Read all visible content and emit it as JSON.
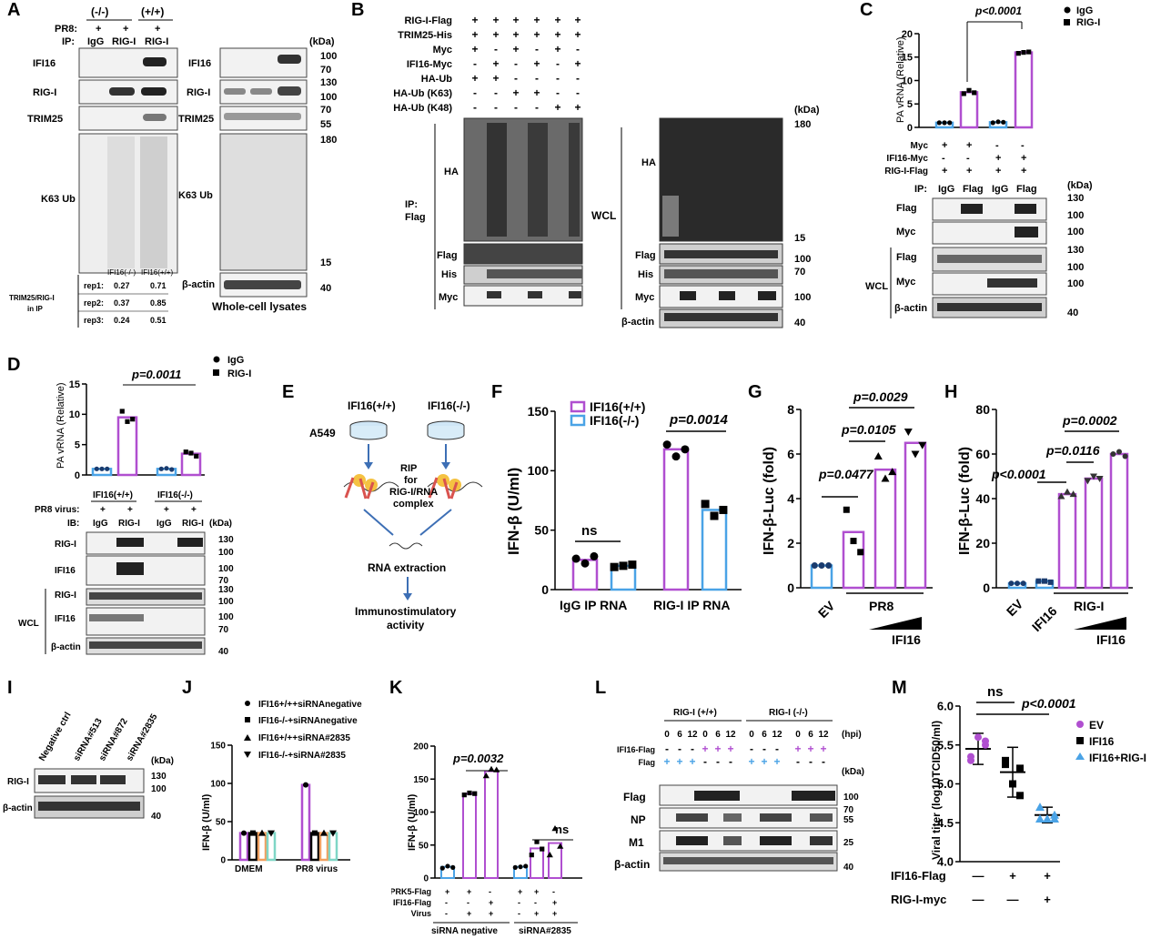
{
  "panels": {
    "A": {
      "letter": "A",
      "genotypes": [
        "(-/-)",
        "(+/+)"
      ],
      "row_pr8": "PR8:",
      "row_ip": "IP:",
      "pr8_marks": [
        "+",
        "+",
        "+"
      ],
      "ip_lanes": [
        "IgG",
        "RIG-I",
        "RIG-I"
      ],
      "blots_left": [
        "IFI16",
        "RIG-I",
        "TRIM25",
        "K63 Ub"
      ],
      "blots_right": [
        "IFI16",
        "RIG-I",
        "TRIM25",
        "K63 Ub",
        "β-actin"
      ],
      "kda": "(kDa)",
      "markers": [
        "100",
        "70",
        "130",
        "100",
        "70",
        "55",
        "180",
        "15",
        "40"
      ],
      "table_header": [
        "IFI16(-/-)",
        "IFI16(+/+)"
      ],
      "table_rows": [
        {
          "rep": "rep1:",
          "a": "0.27",
          "b": "0.71"
        },
        {
          "rep": "rep2:",
          "a": "0.37",
          "b": "0.85"
        },
        {
          "rep": "rep3:",
          "a": "0.24",
          "b": "0.51"
        }
      ],
      "table_label_1": "TRIM25/RIG-I",
      "table_label_2": "in IP",
      "caption": "Whole-cell lysates"
    },
    "B": {
      "letter": "B",
      "rows": [
        {
          "label": "RIG-I-Flag",
          "marks": [
            "+",
            "+",
            "+",
            "+",
            "+",
            "+"
          ]
        },
        {
          "label": "TRIM25-His",
          "marks": [
            "+",
            "+",
            "+",
            "+",
            "+",
            "+"
          ]
        },
        {
          "label": "Myc",
          "marks": [
            "+",
            "-",
            "+",
            "-",
            "+",
            "-"
          ]
        },
        {
          "label": "IFI16-Myc",
          "marks": [
            "-",
            "+",
            "-",
            "+",
            "-",
            "+"
          ]
        },
        {
          "label": "HA-Ub",
          "marks": [
            "+",
            "+",
            "-",
            "-",
            "-",
            "-"
          ]
        },
        {
          "label": "HA-Ub (K63)",
          "marks": [
            "-",
            "-",
            "+",
            "+",
            "-",
            "-"
          ]
        },
        {
          "label": "HA-Ub (K48)",
          "marks": [
            "-",
            "-",
            "-",
            "-",
            "+",
            "+"
          ]
        }
      ],
      "ip_label_1": "IP:",
      "ip_label_2": "Flag",
      "wcl": "WCL",
      "blots_ip": [
        "HA",
        "Flag",
        "His",
        "Myc"
      ],
      "blots_wcl": [
        "HA",
        "Flag",
        "His",
        "Myc",
        "β-actin"
      ],
      "kda": "(kDa)",
      "markers": [
        "180",
        "15",
        "100",
        "70",
        "100",
        "40"
      ]
    },
    "C": {
      "letter": "C",
      "ylabel": "PA vRNA (Relative)",
      "pvalue": "p<0.0001",
      "legend": [
        "IgG",
        "RIG-I"
      ],
      "rows": [
        {
          "label": "Myc",
          "marks": [
            "+",
            "+",
            "-",
            "-"
          ]
        },
        {
          "label": "IFI16-Myc",
          "marks": [
            "-",
            "-",
            "+",
            "+"
          ]
        },
        {
          "label": "RIG-I-Flag",
          "marks": [
            "+",
            "+",
            "+",
            "+"
          ]
        }
      ],
      "ip_label": "IP:",
      "ip_lanes": [
        "IgG",
        "Flag",
        "IgG",
        "Flag"
      ],
      "kda": "(kDa)",
      "blots": [
        "Flag",
        "Myc",
        "Flag",
        "Myc",
        "β-actin"
      ],
      "markers": [
        "130",
        "100",
        "100",
        "130",
        "100",
        "100",
        "40"
      ],
      "wcl": "WCL"
    },
    "D": {
      "letter": "D",
      "ylabel": "PA vRNA (Relative)",
      "pvalue": "p=0.0011",
      "legend": [
        "IgG",
        "RIG-I"
      ],
      "groups": [
        "IFI16(+/+)",
        "IFI16(-/-)"
      ],
      "pr8_label": "PR8 virus:",
      "pr8_marks": [
        "+",
        "+",
        "+",
        "+"
      ],
      "ib_label": "IB:",
      "ib_lanes": [
        "IgG",
        "RIG-I",
        "IgG",
        "RIG-I"
      ],
      "kda": "(kDa)",
      "blots": [
        "RIG-I",
        "IFI16",
        "RIG-I",
        "IFI16",
        "β-actin"
      ],
      "markers": [
        "130",
        "100",
        "100",
        "70",
        "130",
        "100",
        "100",
        "70",
        "40"
      ],
      "wcl": "WCL"
    },
    "E": {
      "letter": "E",
      "dish_labels": [
        "IFI16(+/+)",
        "IFI16(-/-)"
      ],
      "cell_line": "A549",
      "rip_text": [
        "RIP",
        "for",
        "RIG-I/RNA",
        "complex"
      ],
      "extraction": "RNA extraction",
      "activity": [
        "Immunostimulatory",
        "activity"
      ]
    },
    "F": {
      "letter": "F",
      "ylabel": "IFN-β (U/ml)",
      "legend": [
        "IFI16(+/+)",
        "IFI16(-/-)"
      ],
      "p_ns": "ns",
      "pvalue": "p=0.0014",
      "categories": [
        "IgG IP RNA",
        "RIG-I IP RNA"
      ]
    },
    "G": {
      "letter": "G",
      "ylabel": "IFN-β-Luc (fold)",
      "pvalues": [
        "p=0.0477",
        "p=0.0105",
        "p=0.0029"
      ],
      "x_ev": "EV",
      "x_pr8": "PR8",
      "x_ifi16": "IFI16"
    },
    "H": {
      "letter": "H",
      "ylabel": "IFN-β-Luc (fold)",
      "pvalues": [
        "p<0.0001",
        "p=0.0116",
        "p=0.0002"
      ],
      "x_ev": "EV",
      "x_ifi16_single": "IFI16",
      "x_rigi": "RIG-I",
      "x_ifi16": "IFI16"
    },
    "I": {
      "letter": "I",
      "lanes": [
        "Negative ctrl",
        "siRNA#513",
        "siRNA#872",
        "siRNA#2835"
      ],
      "kda": "(kDa)",
      "blots": [
        "RIG-I",
        "β-actin"
      ],
      "markers": [
        "130",
        "100",
        "40"
      ]
    },
    "J": {
      "letter": "J",
      "ylabel": "IFN-β (U/ml)",
      "legend": [
        "IFI16+/++siRNAnegative",
        "IFI16-/-+siRNAnegative",
        "IFI16+/++siRNA#2835",
        "IFI16-/-+siRNA#2835"
      ],
      "categories": [
        "DMEM",
        "PR8 virus"
      ]
    },
    "K": {
      "letter": "K",
      "ylabel": "IFN-β (U/ml)",
      "pvalue": "p=0.0032",
      "p_ns": "ns",
      "rows": [
        {
          "label": "PRK5-Flag",
          "marks": [
            "+",
            "+",
            "-",
            "+",
            "+",
            "-"
          ]
        },
        {
          "label": "IFI16-Flag",
          "marks": [
            "-",
            "-",
            "+",
            "-",
            "-",
            "+"
          ]
        },
        {
          "label": "Virus",
          "marks": [
            "-",
            "+",
            "+",
            "-",
            "+",
            "+"
          ]
        }
      ],
      "groups": [
        "siRNA negative",
        "siRNA#2835"
      ]
    },
    "L": {
      "letter": "L",
      "groups": [
        "RIG-I (+/+)",
        "RIG-I (-/-)"
      ],
      "hpi_values": [
        "0",
        "6",
        "12",
        "0",
        "6",
        "12",
        "0",
        "6",
        "12",
        "0",
        "6",
        "12"
      ],
      "hpi": "(hpi)",
      "rows": [
        {
          "label": "IFI16-Flag",
          "marks": [
            "-",
            "-",
            "-",
            "+",
            "+",
            "+",
            "-",
            "-",
            "-",
            "+",
            "+",
            "+"
          ]
        },
        {
          "label": "Flag",
          "marks": [
            "+",
            "+",
            "+",
            "-",
            "-",
            "-",
            "+",
            "+",
            "+",
            "-",
            "-",
            "-"
          ]
        }
      ],
      "kda": "(kDa)",
      "blots": [
        "Flag",
        "NP",
        "M1",
        "β-actin"
      ],
      "markers": [
        "100",
        "70",
        "55",
        "25",
        "40"
      ]
    },
    "M": {
      "letter": "M",
      "ylabel": "Viral titer (log10TCID50/ml)",
      "p_ns": "ns",
      "pvalue": "p<0.0001",
      "legend": [
        "EV",
        "IFI16",
        "IFI16+RIG-I"
      ],
      "rows": [
        {
          "label": "IFI16-Flag",
          "marks": [
            "—",
            "+",
            "+"
          ]
        },
        {
          "label": "RIG-I-myc",
          "marks": [
            "—",
            "—",
            "+"
          ]
        }
      ]
    }
  },
  "colors": {
    "purple": "#b04fd0",
    "blue": "#4aa3e6",
    "orange": "#f0a060",
    "teal": "#7fd6c6",
    "black": "#000000"
  },
  "chart_data": [
    {
      "panel": "C",
      "type": "bar",
      "ylabel": "PA vRNA (Relative)",
      "ylim": [
        0,
        20
      ],
      "yticks": [
        0,
        5,
        10,
        15,
        20
      ],
      "categories": [
        "Myc+RIG-I-Flag IgG",
        "Myc+RIG-I-Flag Flag",
        "IFI16-Myc+RIG-I-Flag IgG",
        "IFI16-Myc+RIG-I-Flag Flag"
      ],
      "values": [
        1.0,
        7.5,
        1.1,
        16.0
      ],
      "points": [
        [
          1.0,
          1.0,
          1.0
        ],
        [
          7.2,
          7.9,
          7.4
        ],
        [
          1.0,
          1.2,
          1.1
        ],
        [
          15.8,
          16.0,
          16.1
        ]
      ],
      "bar_colors": [
        "#4aa3e6",
        "#b04fd0",
        "#4aa3e6",
        "#b04fd0"
      ]
    },
    {
      "panel": "D",
      "type": "bar",
      "ylabel": "PA vRNA (Relative)",
      "ylim": [
        0,
        15
      ],
      "yticks": [
        0,
        5,
        10,
        15
      ],
      "categories": [
        "IFI16(+/+) IgG",
        "IFI16(+/+) RIG-I",
        "IFI16(-/-) IgG",
        "IFI16(-/-) RIG-I"
      ],
      "values": [
        1.0,
        9.5,
        1.0,
        3.5
      ],
      "points": [
        [
          1.0,
          1.0,
          1.0
        ],
        [
          10.5,
          8.8,
          9.2
        ],
        [
          1.0,
          1.1,
          0.9
        ],
        [
          3.8,
          3.6,
          3.1
        ]
      ],
      "bar_colors": [
        "#4aa3e6",
        "#b04fd0",
        "#4aa3e6",
        "#b04fd0"
      ]
    },
    {
      "panel": "F",
      "type": "bar",
      "ylabel": "IFN-β (U/ml)",
      "ylim": [
        0,
        150
      ],
      "yticks": [
        0,
        50,
        100,
        150
      ],
      "categories": [
        "IgG IP RNA",
        "RIG-I IP RNA"
      ],
      "series": [
        {
          "name": "IFI16(+/+)",
          "values": [
            25,
            118
          ],
          "points": [
            [
              26,
              22,
              28
            ],
            [
              122,
              112,
              118
            ]
          ]
        },
        {
          "name": "IFI16(-/-)",
          "values": [
            20,
            67
          ],
          "points": [
            [
              19,
              20,
              21
            ],
            [
              72,
              62,
              67
            ]
          ]
        }
      ]
    },
    {
      "panel": "G",
      "type": "bar",
      "ylabel": "IFN-β-Luc (fold)",
      "ylim": [
        0,
        8
      ],
      "yticks": [
        0,
        2,
        4,
        6,
        8
      ],
      "categories": [
        "EV",
        "PR8",
        "PR8+IFI16 low",
        "PR8+IFI16 high"
      ],
      "values": [
        1.0,
        2.5,
        5.3,
        6.5
      ],
      "points": [
        [
          1.0,
          1.0,
          1.0
        ],
        [
          3.5,
          2.1,
          1.6
        ],
        [
          5.9,
          4.9,
          5.2
        ],
        [
          7.0,
          6.0,
          6.4
        ]
      ]
    },
    {
      "panel": "H",
      "type": "bar",
      "ylabel": "IFN-β-Luc (fold)",
      "ylim": [
        0,
        80
      ],
      "yticks": [
        0,
        20,
        40,
        60,
        80
      ],
      "categories": [
        "EV",
        "IFI16",
        "RIG-I",
        "RIG-I+IFI16 low",
        "RIG-I+IFI16 high"
      ],
      "values": [
        2,
        3,
        42,
        49,
        60
      ],
      "points": [
        [
          2,
          2,
          2
        ],
        [
          3,
          3,
          2.5
        ],
        [
          41,
          43,
          42
        ],
        [
          48,
          50,
          49
        ],
        [
          60,
          61,
          59
        ]
      ]
    },
    {
      "panel": "J",
      "type": "bar",
      "ylabel": "IFN-β (U/ml)",
      "ylim": [
        0,
        150
      ],
      "yticks": [
        0,
        50,
        100,
        150
      ],
      "categories": [
        "DMEM",
        "PR8 virus"
      ],
      "series": [
        {
          "name": "IFI16+/++siRNAnegative",
          "values": [
            35,
            98
          ]
        },
        {
          "name": "IFI16-/-+siRNAnegative",
          "values": [
            35,
            35
          ]
        },
        {
          "name": "IFI16+/++siRNA#2835",
          "values": [
            35,
            35
          ]
        },
        {
          "name": "IFI16-/-+siRNA#2835",
          "values": [
            35,
            35
          ]
        }
      ]
    },
    {
      "panel": "K",
      "type": "bar",
      "ylabel": "IFN-β (U/ml)",
      "ylim": [
        0,
        200
      ],
      "yticks": [
        0,
        50,
        100,
        150,
        200
      ],
      "categories": [
        "siRNA negative: PRK5",
        "siRNA negative: PRK5+Virus",
        "siRNA negative: IFI16+Virus",
        "siRNA#2835: PRK5",
        "siRNA#2835: PRK5+Virus",
        "siRNA#2835: IFI16+Virus"
      ],
      "values": [
        17,
        128,
        162,
        17,
        45,
        53
      ],
      "points": [
        [
          15,
          18,
          16
        ],
        [
          126,
          129,
          128
        ],
        [
          155,
          165,
          164
        ],
        [
          16,
          17,
          18
        ],
        [
          35,
          55,
          44
        ],
        [
          35,
          75,
          48
        ]
      ]
    },
    {
      "panel": "M",
      "type": "scatter",
      "ylabel": "Viral titer (log10TCID50/ml)",
      "ylim": [
        4.0,
        6.0
      ],
      "yticks": [
        4.0,
        4.5,
        5.0,
        5.5,
        6.0
      ],
      "categories": [
        "EV",
        "IFI16",
        "IFI16+RIG-I"
      ],
      "means": [
        5.45,
        5.15,
        4.6
      ],
      "sd": [
        0.2,
        0.32,
        0.1
      ],
      "points": [
        [
          5.3,
          5.5,
          5.35,
          5.55,
          5.6
        ],
        [
          5.3,
          5.2,
          5.25,
          4.85,
          5.0
        ],
        [
          4.7,
          4.55,
          4.55,
          4.6,
          4.55
        ]
      ]
    }
  ]
}
